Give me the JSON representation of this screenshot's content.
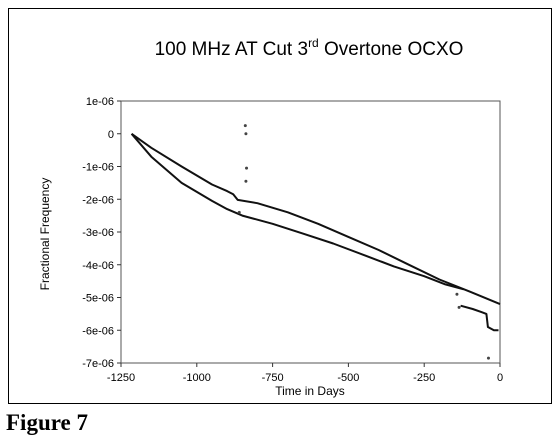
{
  "figure_caption": "Figure 7",
  "chart_data": {
    "type": "line",
    "title_main": "100 MHz AT Cut 3",
    "title_sup": "rd",
    "title_rest": " Overtone OCXO",
    "xlabel": "Time in Days",
    "ylabel": "Fractional Frequency",
    "xlim": [
      -1250,
      0
    ],
    "ylim": [
      -7e-06,
      1e-06
    ],
    "x_ticks": [
      -1250,
      -1000,
      -750,
      -500,
      -250,
      0
    ],
    "x_tick_labels": [
      "-1250",
      "-1000",
      "-750",
      "-500",
      "-250",
      "0"
    ],
    "y_ticks": [
      1e-06,
      0,
      -1e-06,
      -2e-06,
      -3e-06,
      -4e-06,
      -5e-06,
      -6e-06,
      -7e-06
    ],
    "y_tick_labels": [
      "1e-06",
      "0",
      "-1e-06",
      "-2e-06",
      "-3e-06",
      "-4e-06",
      "-5e-06",
      "-6e-06",
      "-7e-06"
    ],
    "grid": false,
    "legend": false,
    "series": [
      {
        "style": "line",
        "points": [
          {
            "x": -1215,
            "y": 0
          },
          {
            "x": -1150,
            "y": -4.3e-07
          },
          {
            "x": -1050,
            "y": -1e-06
          },
          {
            "x": -950,
            "y": -1.55e-06
          },
          {
            "x": -900,
            "y": -1.75e-06
          },
          {
            "x": -880,
            "y": -1.85e-06
          },
          {
            "x": -865,
            "y": -2.02e-06
          },
          {
            "x": -800,
            "y": -2.12e-06
          },
          {
            "x": -700,
            "y": -2.4e-06
          },
          {
            "x": -600,
            "y": -2.75e-06
          },
          {
            "x": -500,
            "y": -3.15e-06
          },
          {
            "x": -400,
            "y": -3.55e-06
          },
          {
            "x": -300,
            "y": -4e-06
          },
          {
            "x": -200,
            "y": -4.45e-06
          },
          {
            "x": -100,
            "y": -4.82e-06
          },
          {
            "x": 0,
            "y": -5.2e-06
          }
        ]
      },
      {
        "style": "line",
        "points": [
          {
            "x": -1215,
            "y": 0
          },
          {
            "x": -1150,
            "y": -7e-07
          },
          {
            "x": -1050,
            "y": -1.5e-06
          },
          {
            "x": -950,
            "y": -2.05e-06
          },
          {
            "x": -900,
            "y": -2.3e-06
          },
          {
            "x": -850,
            "y": -2.5e-06
          },
          {
            "x": -750,
            "y": -2.75e-06
          },
          {
            "x": -650,
            "y": -3.05e-06
          },
          {
            "x": -550,
            "y": -3.35e-06
          },
          {
            "x": -450,
            "y": -3.7e-06
          },
          {
            "x": -350,
            "y": -4.05e-06
          },
          {
            "x": -250,
            "y": -4.35e-06
          },
          {
            "x": -180,
            "y": -4.6e-06
          },
          {
            "x": -120,
            "y": -4.75e-06
          }
        ]
      },
      {
        "style": "line",
        "points": [
          {
            "x": -130,
            "y": -5.25e-06
          },
          {
            "x": -90,
            "y": -5.35e-06
          },
          {
            "x": -60,
            "y": -5.45e-06
          },
          {
            "x": -45,
            "y": -5.5e-06
          },
          {
            "x": -40,
            "y": -5.9e-06
          },
          {
            "x": -20,
            "y": -6e-06
          },
          {
            "x": -5,
            "y": -6e-06
          }
        ]
      },
      {
        "style": "points",
        "points": [
          {
            "x": -840,
            "y": 2.5e-07
          },
          {
            "x": -838,
            "y": 0
          },
          {
            "x": -836,
            "y": -1.05e-06
          },
          {
            "x": -838,
            "y": -1.45e-06
          },
          {
            "x": -860,
            "y": -2.4e-06
          },
          {
            "x": -142,
            "y": -4.9e-06
          },
          {
            "x": -135,
            "y": -5.3e-06
          },
          {
            "x": -38,
            "y": -6.85e-06
          }
        ]
      }
    ]
  }
}
